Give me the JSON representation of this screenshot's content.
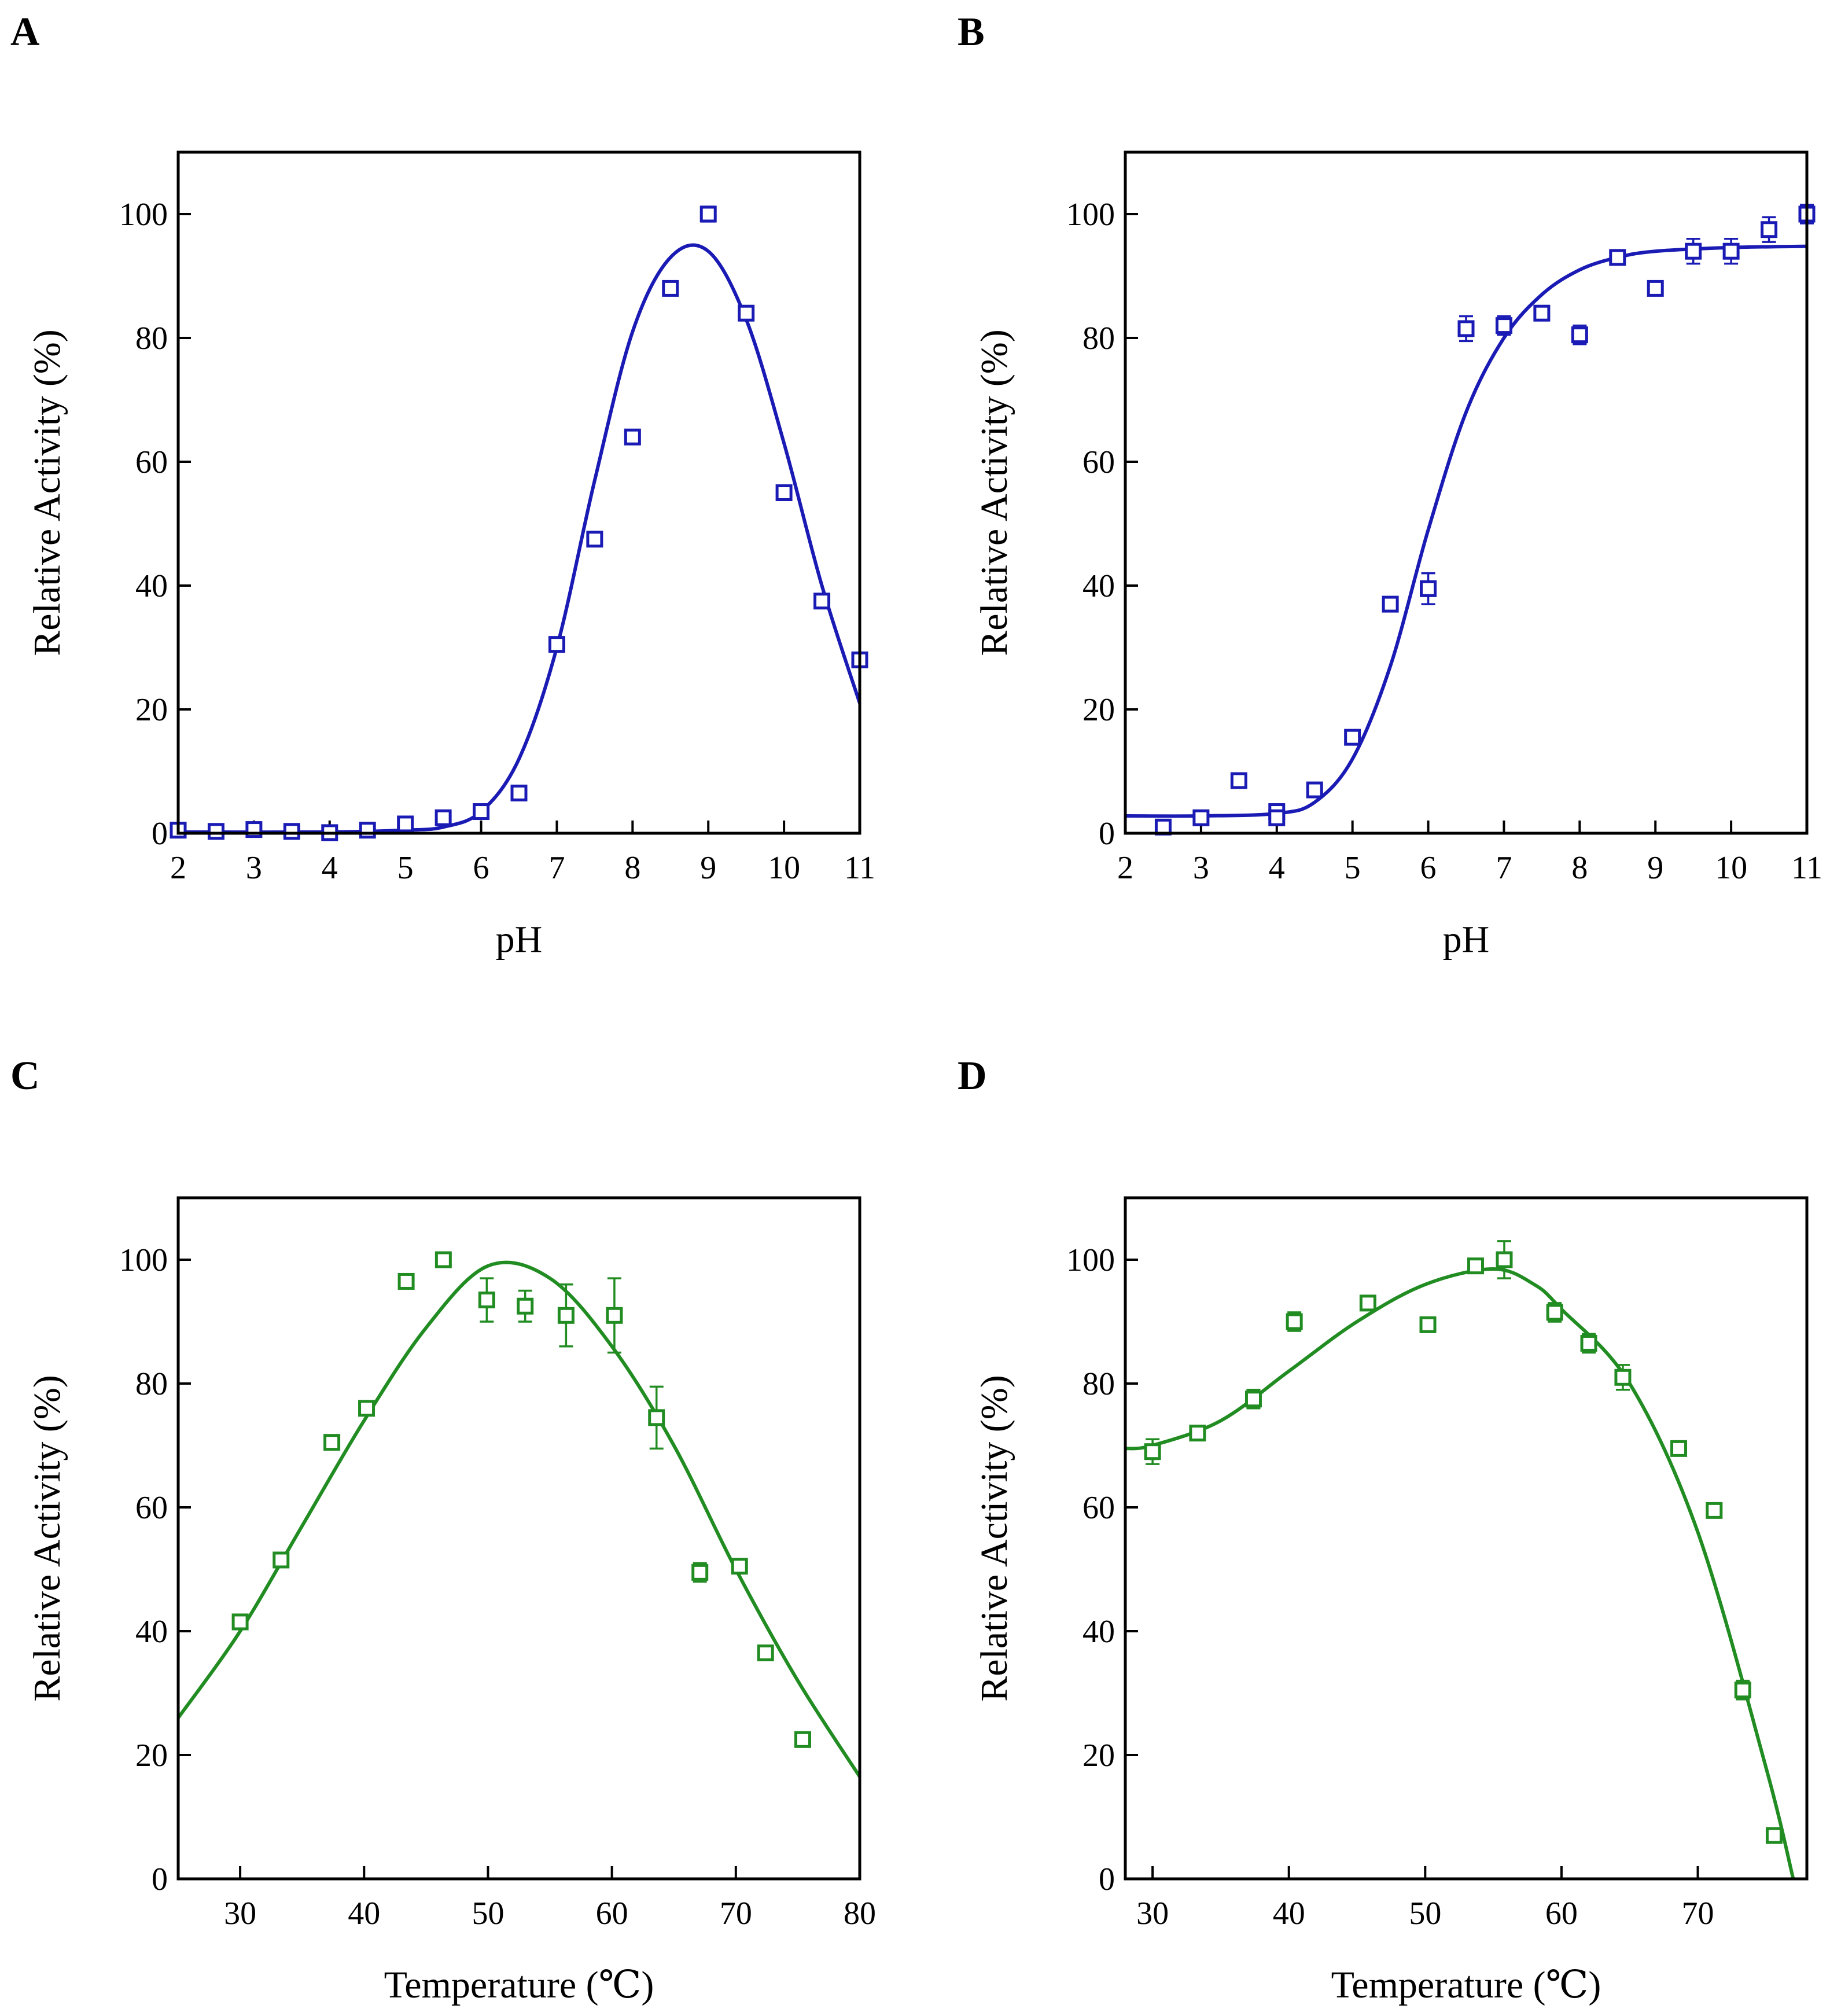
{
  "chart_data": [
    {
      "panel": "A",
      "type": "scatter",
      "xlabel": "pH",
      "ylabel": "Relative Activity (%)",
      "xlim": [
        2,
        11
      ],
      "ylim": [
        0,
        110
      ],
      "xticks": [
        2,
        3,
        4,
        5,
        6,
        7,
        8,
        9,
        10,
        11
      ],
      "yticks": [
        0,
        20,
        40,
        60,
        80,
        100
      ],
      "color": "#1a1ab4",
      "series": [
        {
          "name": "measured",
          "x": [
            2,
            2.5,
            3,
            3.5,
            4,
            4.5,
            5,
            5.5,
            6,
            6.5,
            7,
            7.5,
            8,
            8.5,
            9,
            9.5,
            10,
            10.5,
            11
          ],
          "y": [
            0.5,
            0.3,
            0.6,
            0.3,
            0.1,
            0.5,
            1.5,
            2.5,
            3.5,
            6.5,
            30.5,
            47.5,
            64,
            88,
            100,
            84,
            55,
            37.5,
            28
          ],
          "err": [
            0,
            0,
            0,
            0,
            0,
            0,
            0,
            0,
            0,
            0,
            0,
            0,
            0,
            0,
            1.2,
            0,
            0,
            0,
            0
          ]
        },
        {
          "name": "fit",
          "x": [
            2,
            4,
            5,
            5.5,
            6,
            6.5,
            7,
            7.5,
            8,
            8.5,
            9,
            9.5,
            10,
            10.5,
            11
          ],
          "y": [
            0.2,
            0.2,
            0.5,
            1,
            3.5,
            12,
            30,
            57,
            81,
            93,
            94,
            83,
            63,
            40,
            21
          ]
        }
      ]
    },
    {
      "panel": "B",
      "type": "scatter",
      "xlabel": "pH",
      "ylabel": "Relative Activity (%)",
      "xlim": [
        2,
        11
      ],
      "ylim": [
        0,
        110
      ],
      "xticks": [
        2,
        3,
        4,
        5,
        6,
        7,
        8,
        9,
        10,
        11
      ],
      "yticks": [
        0,
        20,
        40,
        60,
        80,
        100
      ],
      "color": "#1a1ab4",
      "series": [
        {
          "name": "measured",
          "x": [
            2.5,
            3,
            3.5,
            4,
            4,
            4.5,
            5,
            5.5,
            6,
            6.5,
            7,
            7.5,
            8,
            8.5,
            9,
            9.5,
            10,
            10.5,
            11
          ],
          "y": [
            1,
            2.5,
            8.5,
            3.5,
            2.5,
            7,
            15.5,
            37,
            39.5,
            81.5,
            82,
            84,
            80.5,
            93,
            88,
            94,
            94,
            97.5,
            100
          ],
          "err": [
            0,
            0,
            0,
            1,
            0,
            0,
            1,
            0,
            2.5,
            2,
            1.5,
            0,
            1.5,
            0,
            1,
            2,
            2,
            2,
            1.5
          ]
        },
        {
          "name": "fit",
          "x": [
            2,
            3,
            4,
            4.5,
            5,
            5.5,
            6,
            6.5,
            7,
            7.5,
            8,
            8.5,
            9,
            10,
            11
          ],
          "y": [
            2.8,
            2.8,
            3.2,
            5,
            12,
            27,
            49,
            68,
            80,
            87,
            91,
            93,
            94,
            94.6,
            94.8
          ]
        }
      ]
    },
    {
      "panel": "C",
      "type": "scatter",
      "xlabel": "Temperature (℃)",
      "ylabel": "Relative Activity (%)",
      "xlim": [
        25,
        80
      ],
      "ylim": [
        0,
        110
      ],
      "xticks": [
        30,
        40,
        50,
        60,
        70,
        80
      ],
      "yticks": [
        0,
        20,
        40,
        60,
        80,
        100
      ],
      "color": "#218c21",
      "series": [
        {
          "name": "measured",
          "x": [
            30,
            33.3,
            37.4,
            40.2,
            43.4,
            46.4,
            49.9,
            53,
            56.3,
            60.2,
            63.6,
            67.1,
            70.3,
            72.4,
            75.4
          ],
          "y": [
            41.5,
            51.5,
            70.5,
            76,
            96.5,
            100,
            93.5,
            92.5,
            91,
            91,
            74.5,
            49.5,
            50.5,
            36.5,
            22.5
          ],
          "err": [
            0,
            0,
            0,
            0,
            0,
            0,
            3.5,
            2.5,
            5,
            6,
            5,
            1.5,
            0,
            0,
            1
          ]
        },
        {
          "name": "fit",
          "x": [
            25,
            30,
            35,
            40,
            45,
            50,
            55,
            60,
            65,
            70,
            75,
            80
          ],
          "y": [
            26,
            40,
            57,
            74,
            89,
            99,
            97,
            86,
            70,
            50,
            32,
            16.5
          ]
        }
      ]
    },
    {
      "panel": "D",
      "type": "scatter",
      "xlabel": "Temperature (℃)",
      "ylabel": "Relative Activity (%)",
      "xlim": [
        28,
        78
      ],
      "ylim": [
        0,
        110
      ],
      "xticks": [
        30,
        40,
        50,
        60,
        70
      ],
      "yticks": [
        0,
        20,
        40,
        60,
        80,
        100
      ],
      "color": "#218c21",
      "series": [
        {
          "name": "measured",
          "x": [
            30,
            33.3,
            37.4,
            40.4,
            45.8,
            50.2,
            53.7,
            55.8,
            59.5,
            62,
            64.5,
            68.6,
            71.2,
            73.3,
            75.6
          ],
          "y": [
            69,
            72,
            77.5,
            90,
            93,
            89.5,
            99,
            100,
            91.5,
            86.5,
            81,
            69.5,
            59.5,
            30.5,
            7
          ],
          "err": [
            2,
            0,
            1.5,
            1.5,
            0,
            0,
            0,
            3,
            1.5,
            1.5,
            2,
            1,
            0,
            1.5,
            0
          ]
        },
        {
          "name": "fit",
          "x": [
            28,
            30,
            35,
            40,
            45,
            50,
            55,
            58,
            60,
            65,
            70,
            75,
            77
          ],
          "y": [
            69.5,
            70,
            74,
            82,
            90,
            96,
            98.5,
            96,
            92,
            80,
            56,
            18,
            0
          ]
        }
      ]
    }
  ]
}
